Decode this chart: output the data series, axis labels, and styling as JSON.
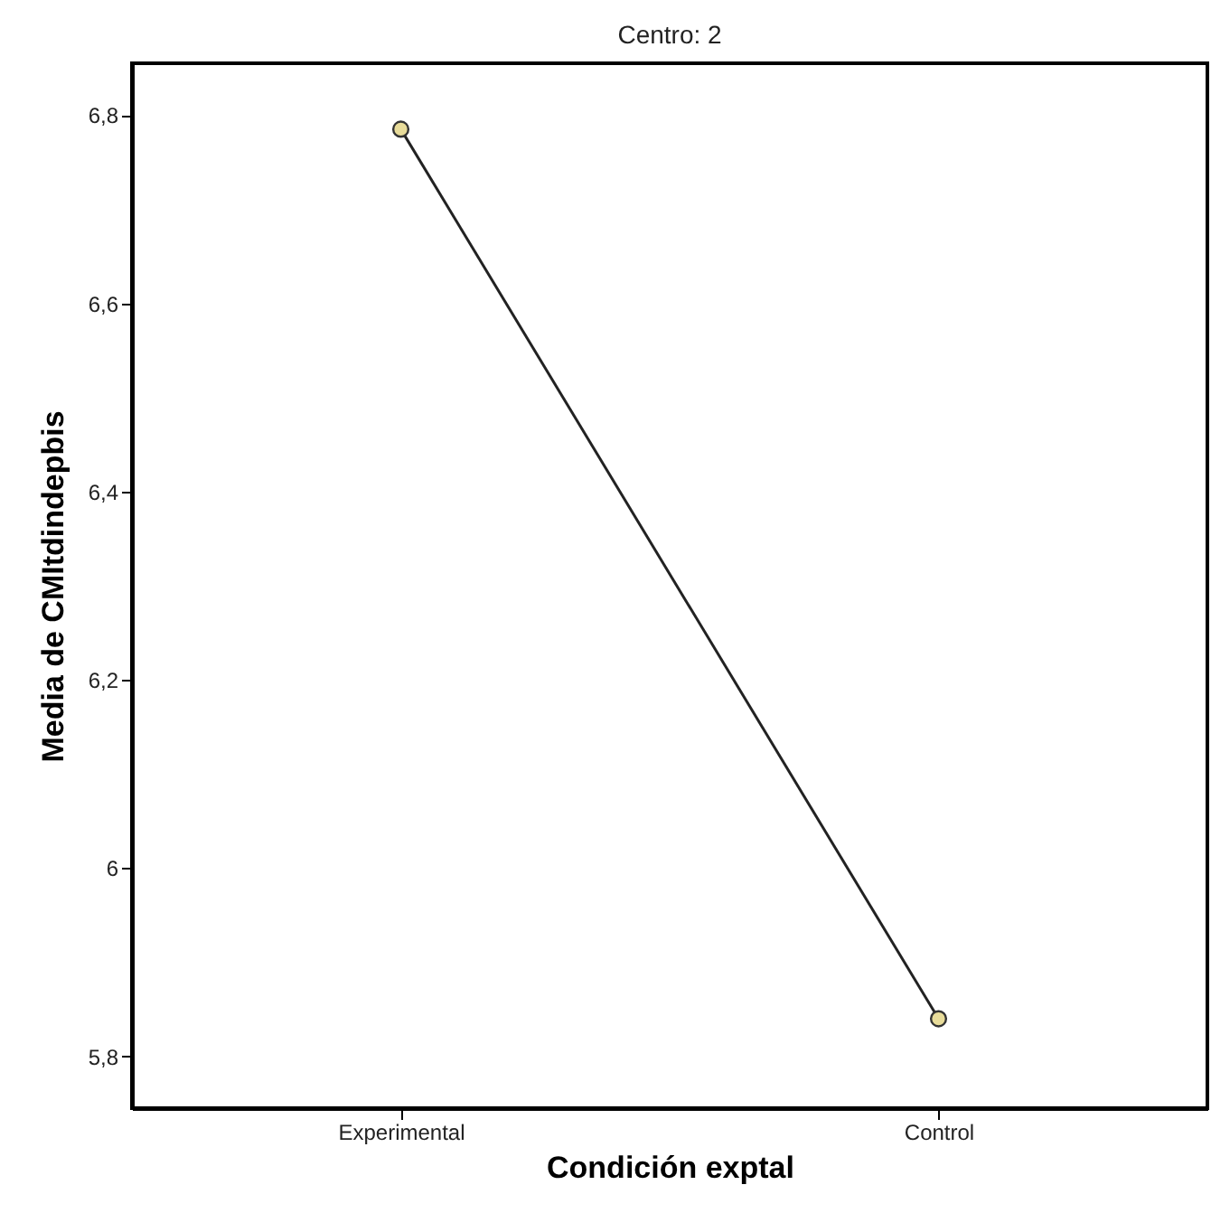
{
  "chart_data": {
    "type": "line",
    "title": "Centro: 2",
    "xlabel": "Condición exptal",
    "ylabel": "Media de CMItdindepbis",
    "categories": [
      "Experimental",
      "Control"
    ],
    "series": [
      {
        "color": "#e8dc9a",
        "values": [
          6.785,
          5.84
        ]
      }
    ],
    "ylim": [
      5.745,
      6.855
    ],
    "yticks": [
      {
        "value": 5.8,
        "label": "5,8"
      },
      {
        "value": 6,
        "label": "6"
      },
      {
        "value": 6.2,
        "label": "6,2"
      },
      {
        "value": 6.4,
        "label": "6,4"
      },
      {
        "value": 6.6,
        "label": "6,6"
      },
      {
        "value": 6.8,
        "label": "6,8"
      }
    ],
    "grid": false,
    "marker": "circle",
    "line_style": "solid"
  }
}
